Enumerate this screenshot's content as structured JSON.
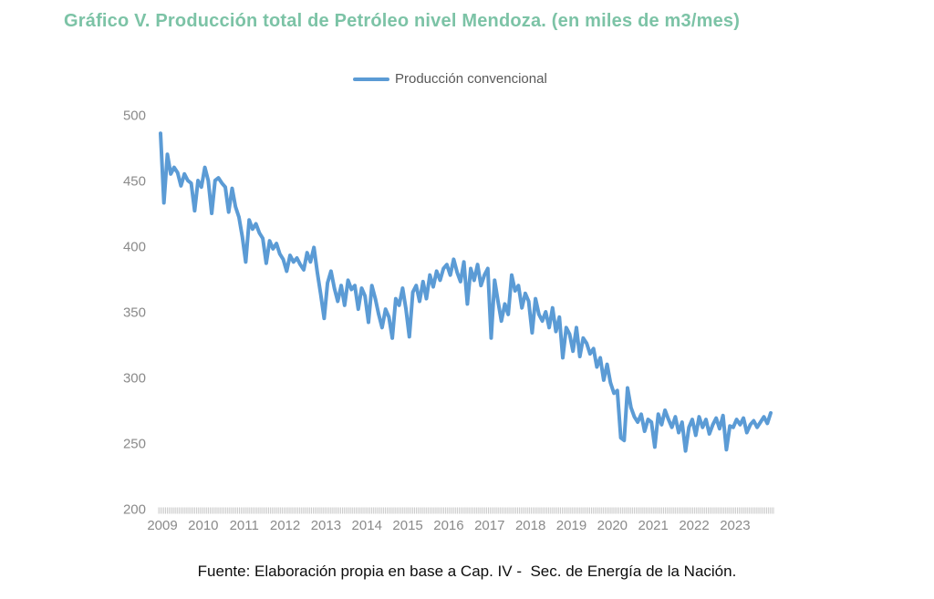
{
  "title": "Gráfico V. Producción total de Petróleo nivel Mendoza. (en miles de m3/mes)",
  "legend": {
    "label": "Producción convencional"
  },
  "source": "Fuente: Elaboración propia en base a Cap. IV -  Sec. de Energía de la Nación.",
  "colors": {
    "title_text": "#7cc3a6",
    "line": "#5b9bd5",
    "axis_text": "#8a8a8a",
    "legend_text": "#595959",
    "axis_tick": "#c6c6c6"
  },
  "chart_data": {
    "type": "line",
    "title": "Gráfico V. Producción total de Petróleo nivel Mendoza. (en miles de m3/mes)",
    "xlabel": "",
    "ylabel": "",
    "ylim": [
      200,
      500
    ],
    "y_ticks": [
      500,
      450,
      400,
      350,
      300,
      250,
      200
    ],
    "x_tick_labels": [
      "2009",
      "2010",
      "2011",
      "2012",
      "2013",
      "2014",
      "2015",
      "2016",
      "2017",
      "2018",
      "2019",
      "2020",
      "2021",
      "2022",
      "2023"
    ],
    "x_start": "2009-01",
    "x_frequency": "monthly",
    "grid": false,
    "legend_position": "top-center",
    "series": [
      {
        "name": "Producción convencional",
        "values": [
          486,
          433,
          470,
          455,
          460,
          456,
          446,
          455,
          450,
          448,
          427,
          450,
          445,
          460,
          450,
          425,
          450,
          452,
          448,
          445,
          426,
          444,
          430,
          422,
          407,
          388,
          420,
          413,
          417,
          410,
          406,
          387,
          404,
          398,
          402,
          394,
          390,
          381,
          393,
          388,
          391,
          386,
          382,
          395,
          388,
          399,
          380,
          363,
          345,
          372,
          381,
          368,
          358,
          370,
          355,
          374,
          367,
          370,
          352,
          368,
          362,
          342,
          370,
          360,
          348,
          338,
          352,
          346,
          330,
          360,
          355,
          368,
          352,
          331,
          365,
          370,
          358,
          373,
          360,
          378,
          369,
          381,
          374,
          383,
          386,
          378,
          390,
          380,
          373,
          388,
          356,
          383,
          374,
          386,
          370,
          378,
          383,
          330,
          374,
          358,
          343,
          356,
          348,
          378,
          366,
          370,
          353,
          364,
          358,
          334,
          360,
          348,
          343,
          350,
          338,
          353,
          335,
          346,
          315,
          338,
          333,
          320,
          338,
          316,
          330,
          326,
          318,
          322,
          308,
          315,
          298,
          310,
          296,
          288,
          290,
          254,
          252,
          292,
          277,
          270,
          266,
          272,
          259,
          268,
          266,
          247,
          272,
          264,
          275,
          268,
          262,
          270,
          258,
          266,
          244,
          262,
          268,
          256,
          270,
          262,
          268,
          257,
          264,
          269,
          261,
          271,
          245,
          263,
          262,
          268,
          264,
          269,
          258,
          264,
          267,
          262,
          266,
          270,
          265,
          273
        ]
      }
    ]
  }
}
